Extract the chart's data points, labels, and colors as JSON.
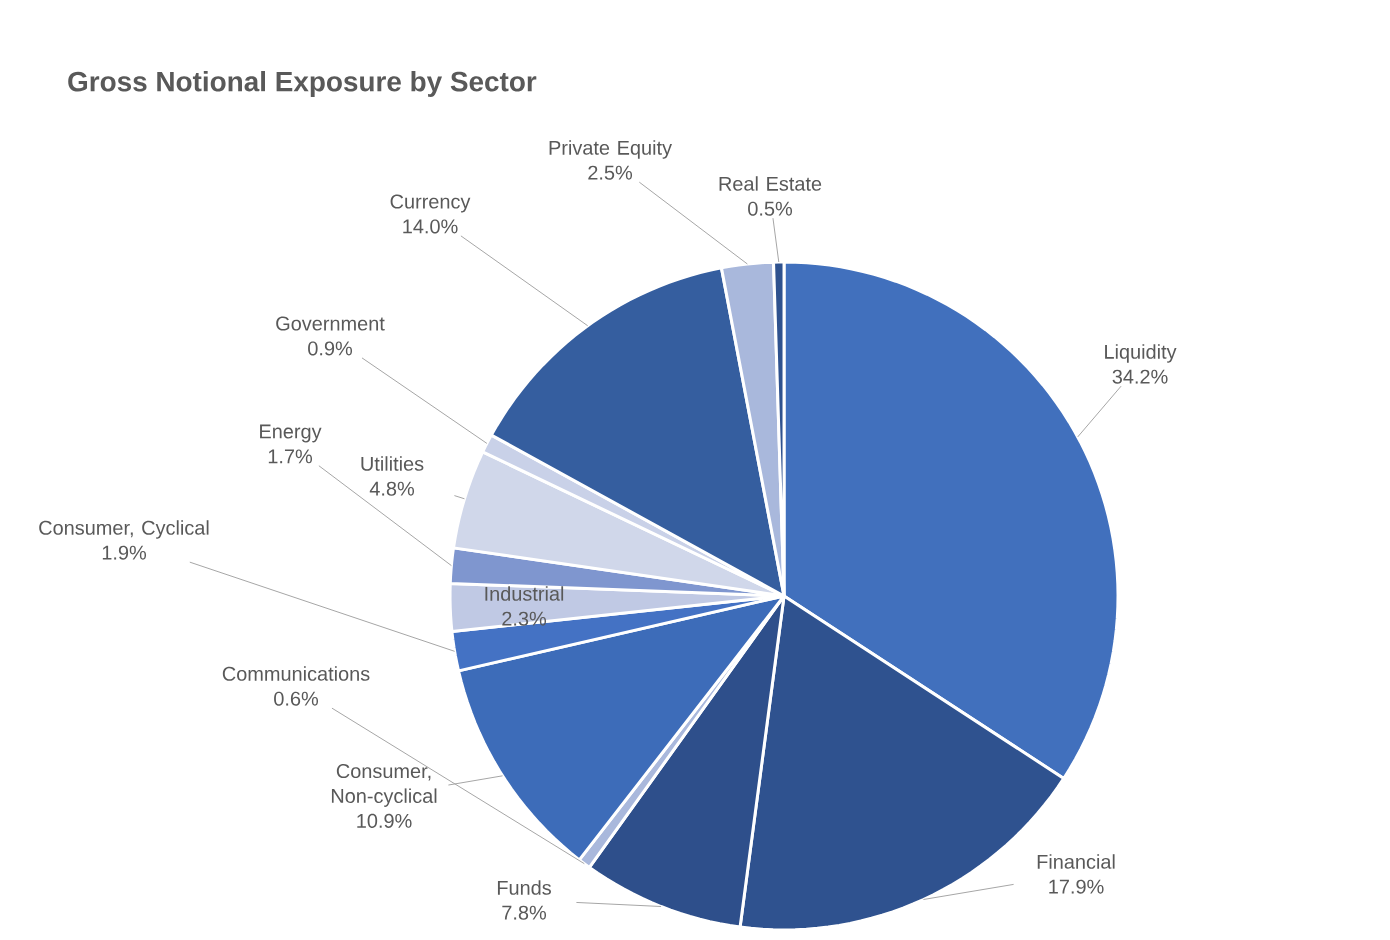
{
  "chart_data": {
    "type": "pie",
    "title": "Gross Notional Exposure by Sector",
    "categories": [
      "Liquidity",
      "Financial",
      "Funds",
      "Communications",
      "Consumer, Non-cyclical",
      "Consumer, Cyclical",
      "Industrial",
      "Energy",
      "Utilities",
      "Government",
      "Currency",
      "Private Equity",
      "Real Estate"
    ],
    "values": [
      34.2,
      17.9,
      7.8,
      0.6,
      10.9,
      1.9,
      2.3,
      1.7,
      4.8,
      0.9,
      14.0,
      2.5,
      0.5
    ],
    "value_labels": [
      "34.2%",
      "17.9%",
      "7.8%",
      "0.6%",
      "10.9%",
      "1.9%",
      "2.3%",
      "1.7%",
      "4.8%",
      "0.9%",
      "14.0%",
      "2.5%",
      "0.5%"
    ],
    "colors": [
      "#4170bd",
      "#2f528f",
      "#2e4f8b",
      "#a9b8dc",
      "#3d6cb9",
      "#4472c4",
      "#c0c9e4",
      "#7f96cf",
      "#d0d7ea",
      "#c9d1e8",
      "#355e9f",
      "#a9b8dc",
      "#2f528f"
    ]
  }
}
